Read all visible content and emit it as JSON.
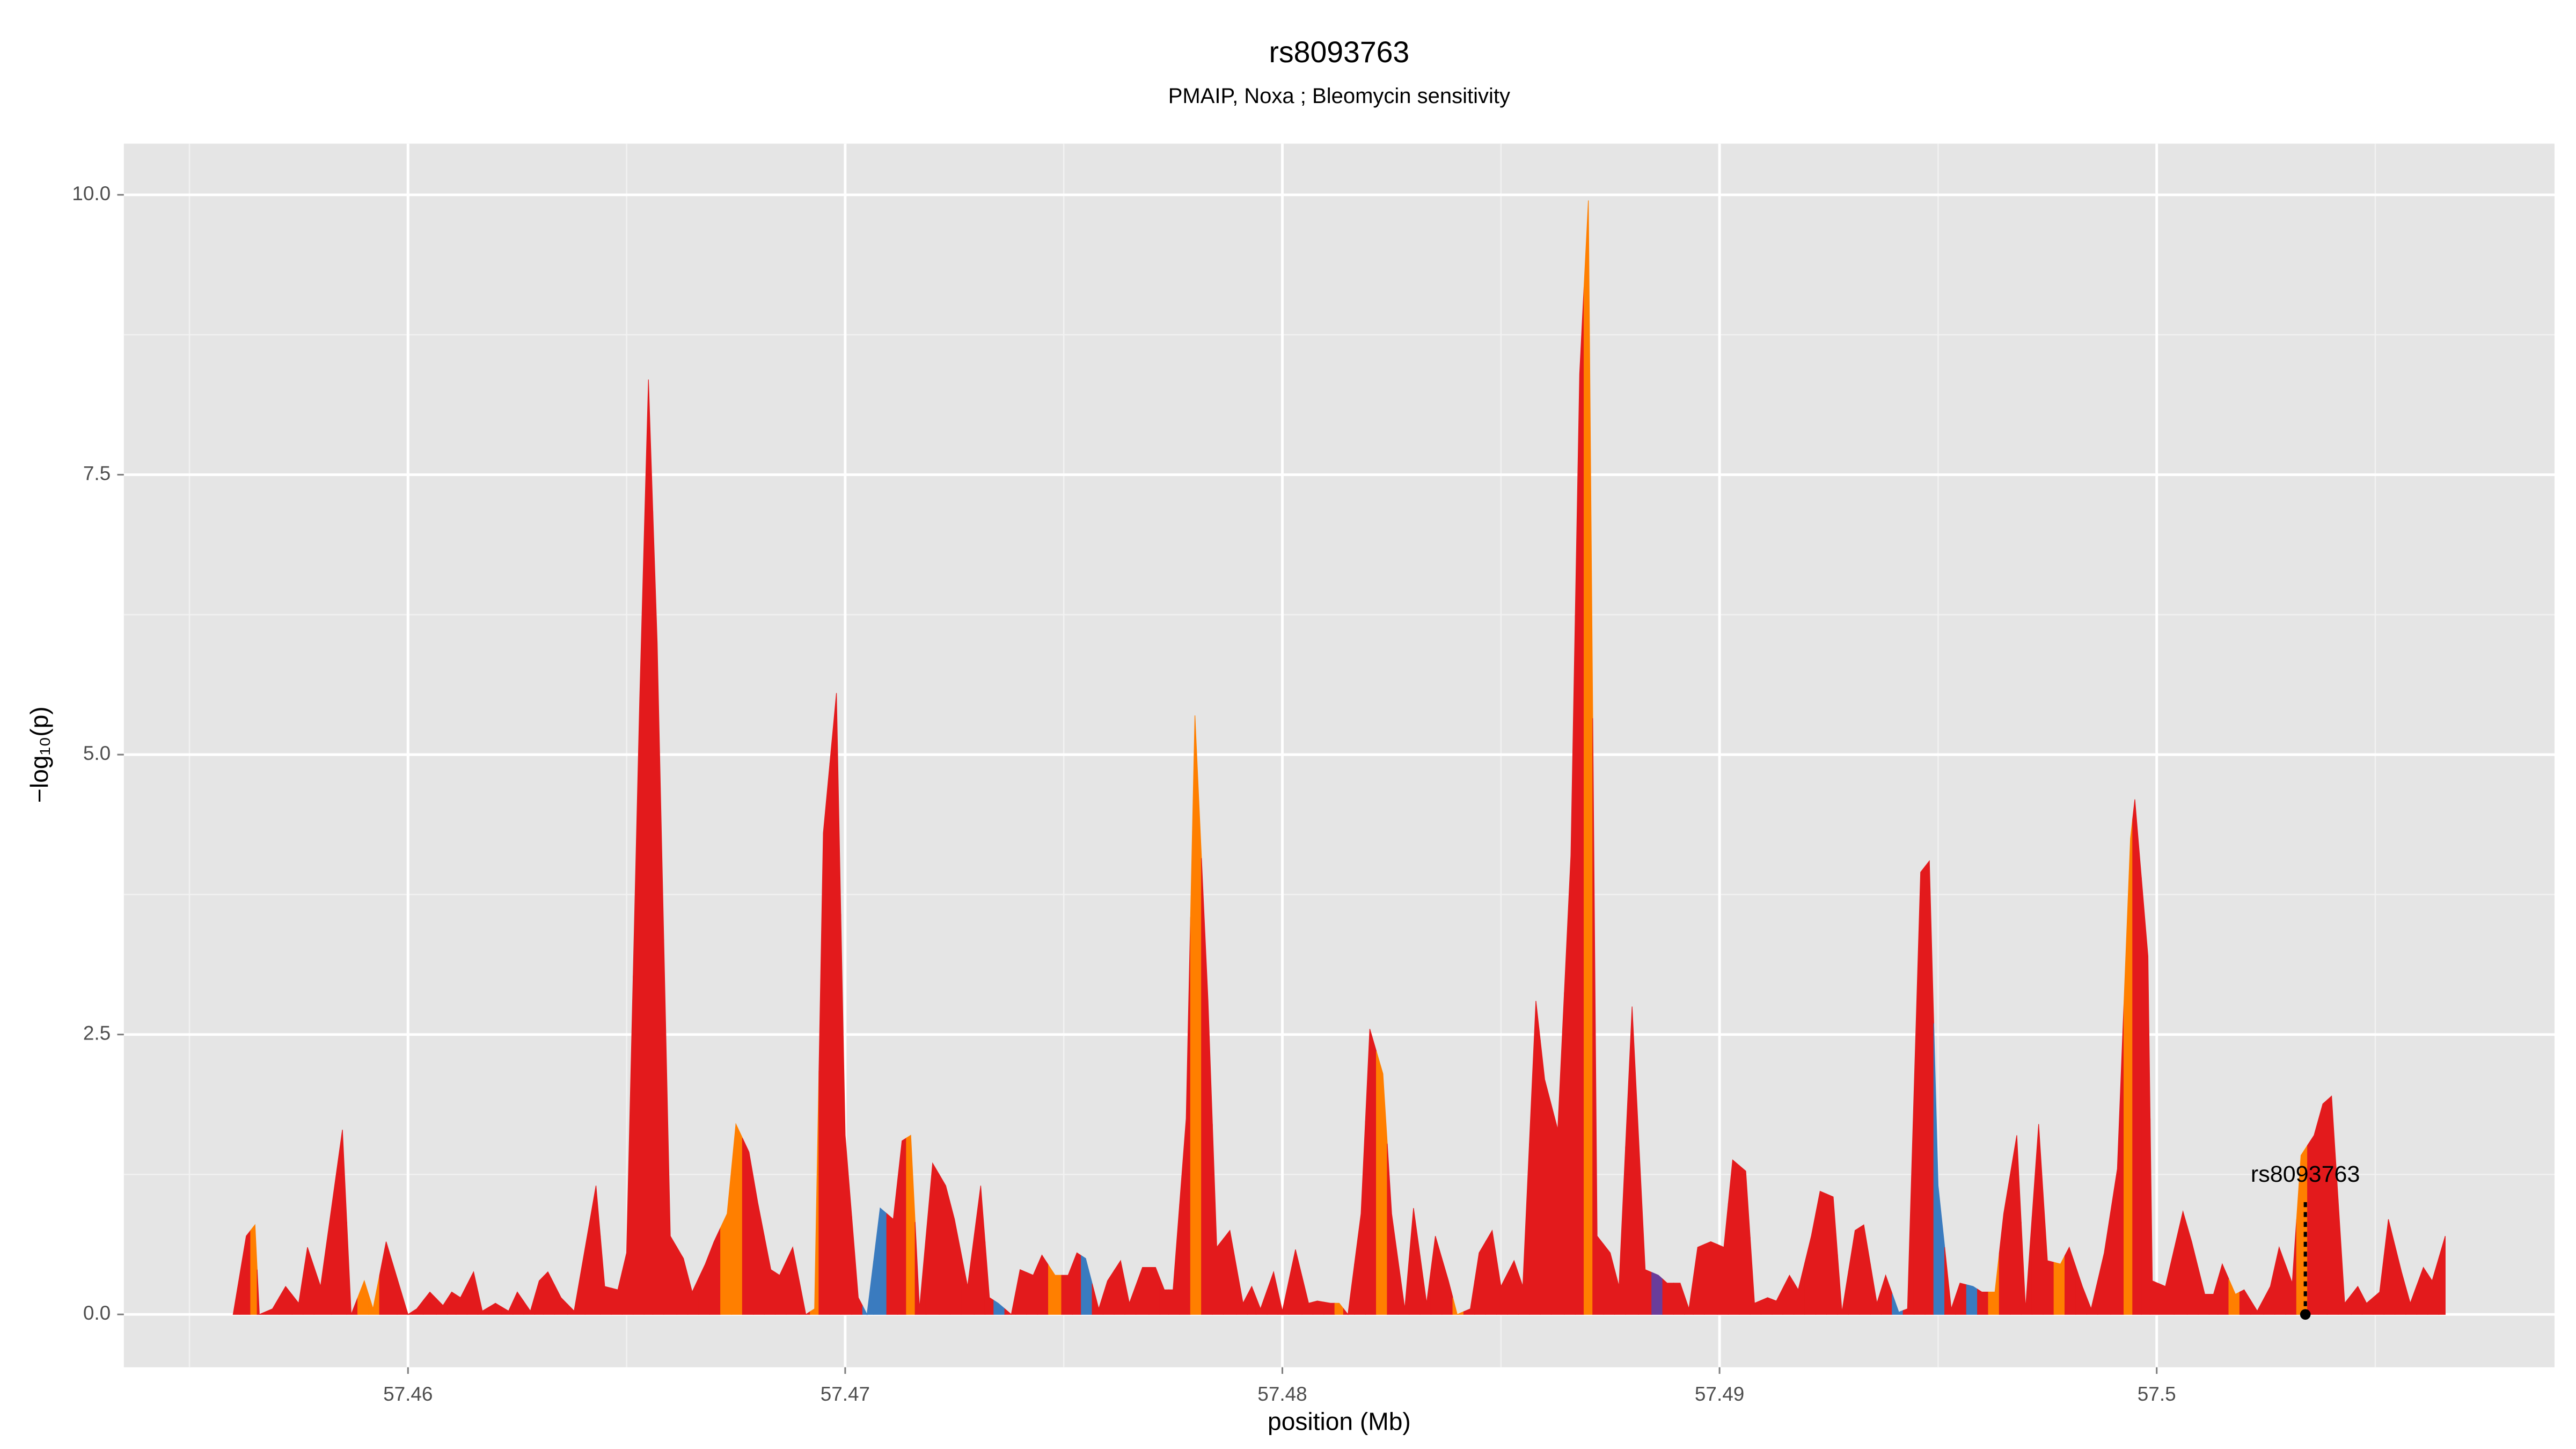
{
  "chart_data": {
    "type": "area",
    "title": "rs8093763",
    "subtitle": "PMAIP, Noxa ; Bleomycin sensitivity",
    "x_label": "position (Mb)",
    "y_label": "−log₁₀(p)",
    "xlim": [
      57.4535,
      57.5091
    ],
    "ylim": [
      -0.472,
      10.457
    ],
    "xticks": [
      57.46,
      57.47,
      57.48,
      57.49,
      57.5
    ],
    "yticks": [
      {
        "value": 0,
        "label": "0.0"
      },
      2.5,
      {
        "value": 5,
        "label": "5.0"
      },
      7.5,
      {
        "value": 10,
        "label": "10.0"
      }
    ],
    "grid": true,
    "minor_grid": true,
    "x": [
      57.456,
      57.4563,
      57.4565,
      57.4566,
      57.4569,
      57.4572,
      57.4575,
      57.4577,
      57.458,
      57.4585,
      57.4587,
      57.459,
      57.4592,
      57.4595,
      57.46,
      57.4602,
      57.4605,
      57.4608,
      57.461,
      57.4612,
      57.4615,
      57.4617,
      57.462,
      57.4623,
      57.4625,
      57.4628,
      57.463,
      57.4632,
      57.4635,
      57.4638,
      57.4643,
      57.4645,
      57.4648,
      57.465,
      57.4653,
      57.4655,
      57.4657,
      57.466,
      57.4663,
      57.4665,
      57.4668,
      57.467,
      57.4673,
      57.4675,
      57.4678,
      57.468,
      57.4683,
      57.4685,
      57.4688,
      57.4691,
      57.4693,
      57.4695,
      57.4698,
      57.47,
      57.4703,
      57.4705,
      57.4708,
      57.4711,
      57.4713,
      57.4715,
      57.4717,
      57.472,
      57.4723,
      57.4725,
      57.4728,
      57.4731,
      57.4733,
      57.4735,
      57.4738,
      57.474,
      57.4743,
      57.4745,
      57.4748,
      57.4751,
      57.4753,
      57.4755,
      57.4758,
      57.476,
      57.4763,
      57.4765,
      57.4768,
      57.4771,
      57.4773,
      57.4775,
      57.4778,
      57.478,
      57.4783,
      57.4785,
      57.4788,
      57.4791,
      57.4793,
      57.4795,
      57.4798,
      57.48,
      57.4803,
      57.4806,
      57.4808,
      57.4811,
      57.4813,
      57.4815,
      57.4818,
      57.482,
      57.4823,
      57.4825,
      57.4828,
      57.483,
      57.4833,
      57.4835,
      57.4838,
      57.484,
      57.4843,
      57.4845,
      57.4848,
      57.485,
      57.4853,
      57.4855,
      57.4858,
      57.486,
      57.4863,
      57.4866,
      57.4868,
      57.487,
      57.4872,
      57.4875,
      57.4877,
      57.488,
      57.4883,
      57.4886,
      57.4888,
      57.4891,
      57.4893,
      57.4895,
      57.4898,
      57.4901,
      57.4903,
      57.4906,
      57.4908,
      57.4911,
      57.4913,
      57.4916,
      57.4918,
      57.4921,
      57.4923,
      57.4926,
      57.4928,
      57.4931,
      57.4933,
      57.4936,
      57.4938,
      57.4941,
      57.4943,
      57.4946,
      57.4948,
      57.495,
      57.4953,
      57.4955,
      57.4958,
      57.496,
      57.4963,
      57.4965,
      57.4968,
      57.497,
      57.4973,
      57.4975,
      57.4978,
      57.498,
      57.4983,
      57.4985,
      57.4988,
      57.4991,
      57.4994,
      57.4995,
      57.4998,
      57.4999,
      57.5002,
      57.5006,
      57.5008,
      57.5011,
      57.5013,
      57.5015,
      57.5018,
      57.502,
      57.5023,
      57.5026,
      57.5028,
      57.5031,
      57.5033,
      57.5036,
      57.5038,
      57.504,
      57.5043,
      57.5046,
      57.5048,
      57.5051,
      57.5053,
      57.5056,
      57.5058,
      57.5061,
      57.5063,
      57.5066
    ],
    "values": [
      0,
      0.7,
      0.8,
      0,
      0.05,
      0.25,
      0.1,
      0.6,
      0.25,
      1.65,
      0,
      0.3,
      0.05,
      0.65,
      0,
      0.05,
      0.2,
      0.08,
      0.2,
      0.15,
      0.38,
      0.03,
      0.1,
      0.03,
      0.2,
      0.03,
      0.3,
      0.38,
      0.15,
      0.03,
      1.15,
      0.25,
      0.22,
      0.55,
      5.5,
      8.35,
      6.0,
      0.7,
      0.5,
      0.2,
      0.45,
      0.65,
      0.9,
      1.7,
      1.45,
      1.0,
      0.4,
      0.35,
      0.6,
      0,
      0.05,
      4.3,
      5.55,
      1.6,
      0.15,
      0,
      0.95,
      0.85,
      1.55,
      1.6,
      0.05,
      1.35,
      1.15,
      0.85,
      0.25,
      1.15,
      0.15,
      0.1,
      0,
      0.4,
      0.35,
      0.53,
      0.35,
      0.35,
      0.55,
      0.5,
      0.05,
      0.3,
      0.48,
      0.1,
      0.42,
      0.42,
      0.22,
      0.22,
      1.75,
      5.35,
      2.8,
      0.6,
      0.75,
      0.1,
      0.25,
      0.05,
      0.38,
      0.03,
      0.58,
      0.1,
      0.12,
      0.1,
      0.1,
      0,
      0.9,
      2.55,
      2.15,
      0.9,
      0.05,
      0.95,
      0.1,
      0.7,
      0.3,
      0,
      0.05,
      0.55,
      0.75,
      0.25,
      0.48,
      0.25,
      2.8,
      2.1,
      1.65,
      4.1,
      8.4,
      9.95,
      0.7,
      0.55,
      0.25,
      2.75,
      0.4,
      0.35,
      0.28,
      0.28,
      0.05,
      0.6,
      0.65,
      0.6,
      1.38,
      1.28,
      0.1,
      0.15,
      0.12,
      0.35,
      0.22,
      0.7,
      1.1,
      1.05,
      0.02,
      0.75,
      0.8,
      0.1,
      0.35,
      0.02,
      0.05,
      3.95,
      4.05,
      1.15,
      0.05,
      0.28,
      0.25,
      0.2,
      0.2,
      0.9,
      1.6,
      0.05,
      1.7,
      0.48,
      0.45,
      0.6,
      0.25,
      0.05,
      0.55,
      1.3,
      4.25,
      4.6,
      3.2,
      0.3,
      0.25,
      0.92,
      0.65,
      0.18,
      0.18,
      0.45,
      0.18,
      0.22,
      0.03,
      0.25,
      0.6,
      0.28,
      1.42,
      1.6,
      1.88,
      1.95,
      0.1,
      0.25,
      0.1,
      0.2,
      0.85,
      0.38,
      0.1,
      0.42,
      0.3,
      0.7
    ],
    "colors": [
      "#e31a1c",
      "#e31a1c",
      "#ff7f00",
      "#e31a1c",
      "#e31a1c",
      "#e31a1c",
      "#e31a1c",
      "#e31a1c",
      "#e31a1c",
      "#e31a1c",
      "#e31a1c",
      "#ff7f00",
      "#ff7f00",
      "#e31a1c",
      "#e31a1c",
      "#e31a1c",
      "#e31a1c",
      "#e31a1c",
      "#e31a1c",
      "#e31a1c",
      "#e31a1c",
      "#e31a1c",
      "#e31a1c",
      "#e31a1c",
      "#e31a1c",
      "#e31a1c",
      "#e31a1c",
      "#e31a1c",
      "#e31a1c",
      "#e31a1c",
      "#e31a1c",
      "#e31a1c",
      "#e31a1c",
      "#e31a1c",
      "#e31a1c",
      "#e31a1c",
      "#e31a1c",
      "#e31a1c",
      "#e31a1c",
      "#e31a1c",
      "#e31a1c",
      "#e31a1c",
      "#ff7f00",
      "#ff7f00",
      "#e31a1c",
      "#e31a1c",
      "#e31a1c",
      "#e31a1c",
      "#e31a1c",
      "#e31a1c",
      "#ff7f00",
      "#e31a1c",
      "#e31a1c",
      "#e31a1c",
      "#e31a1c",
      "#3a7bbf",
      "#3a7bbf",
      "#e31a1c",
      "#e31a1c",
      "#ff7f00",
      "#e31a1c",
      "#e31a1c",
      "#e31a1c",
      "#e31a1c",
      "#e31a1c",
      "#e31a1c",
      "#e31a1c",
      "#3a7bbf",
      "#e31a1c",
      "#e31a1c",
      "#e31a1c",
      "#e31a1c",
      "#ff7f00",
      "#e31a1c",
      "#e31a1c",
      "#3a7bbf",
      "#e31a1c",
      "#e31a1c",
      "#e31a1c",
      "#e31a1c",
      "#e31a1c",
      "#e31a1c",
      "#e31a1c",
      "#e31a1c",
      "#e31a1c",
      "#ff7f00",
      "#e31a1c",
      "#e31a1c",
      "#e31a1c",
      "#e31a1c",
      "#e31a1c",
      "#e31a1c",
      "#e31a1c",
      "#e31a1c",
      "#e31a1c",
      "#e31a1c",
      "#e31a1c",
      "#e31a1c",
      "#ff7f00",
      "#e31a1c",
      "#e31a1c",
      "#e31a1c",
      "#ff7f00",
      "#e31a1c",
      "#e31a1c",
      "#e31a1c",
      "#e31a1c",
      "#e31a1c",
      "#e31a1c",
      "#ff7f00",
      "#e31a1c",
      "#e31a1c",
      "#e31a1c",
      "#e31a1c",
      "#e31a1c",
      "#e31a1c",
      "#e31a1c",
      "#e31a1c",
      "#e31a1c",
      "#e31a1c",
      "#e31a1c",
      "#ff7f00",
      "#e31a1c",
      "#e31a1c",
      "#e31a1c",
      "#e31a1c",
      "#e31a1c",
      "#6a3d9a",
      "#e31a1c",
      "#e31a1c",
      "#e31a1c",
      "#e31a1c",
      "#e31a1c",
      "#e31a1c",
      "#e31a1c",
      "#e31a1c",
      "#e31a1c",
      "#e31a1c",
      "#e31a1c",
      "#e31a1c",
      "#e31a1c",
      "#e31a1c",
      "#e31a1c",
      "#e31a1c",
      "#e31a1c",
      "#e31a1c",
      "#e31a1c",
      "#e31a1c",
      "#e31a1c",
      "#3a7bbf",
      "#e31a1c",
      "#e31a1c",
      "#e31a1c",
      "#3a7bbf",
      "#e31a1c",
      "#e31a1c",
      "#3a7bbf",
      "#e31a1c",
      "#ff7f00",
      "#e31a1c",
      "#e31a1c",
      "#e31a1c",
      "#e31a1c",
      "#e31a1c",
      "#ff7f00",
      "#e31a1c",
      "#e31a1c",
      "#e31a1c",
      "#e31a1c",
      "#e31a1c",
      "#ff7f00",
      "#e31a1c",
      "#e31a1c",
      "#e31a1c",
      "#e31a1c",
      "#e31a1c",
      "#e31a1c",
      "#e31a1c",
      "#e31a1c",
      "#e31a1c",
      "#ff7f00",
      "#e31a1c",
      "#e31a1c",
      "#e31a1c",
      "#e31a1c",
      "#e31a1c",
      "#ff7f00",
      "#e31a1c",
      "#e31a1c",
      "#e31a1c",
      "#e31a1c",
      "#e31a1c",
      "#e31a1c",
      "#e31a1c",
      "#e31a1c",
      "#e31a1c",
      "#e31a1c",
      "#e31a1c",
      "#e31a1c",
      "#e31a1c",
      "#e31a1c",
      "#e31a1c",
      "#e31a1c"
    ],
    "annotation": {
      "label": "rs8093763",
      "x": 57.5034,
      "y": 0
    }
  }
}
